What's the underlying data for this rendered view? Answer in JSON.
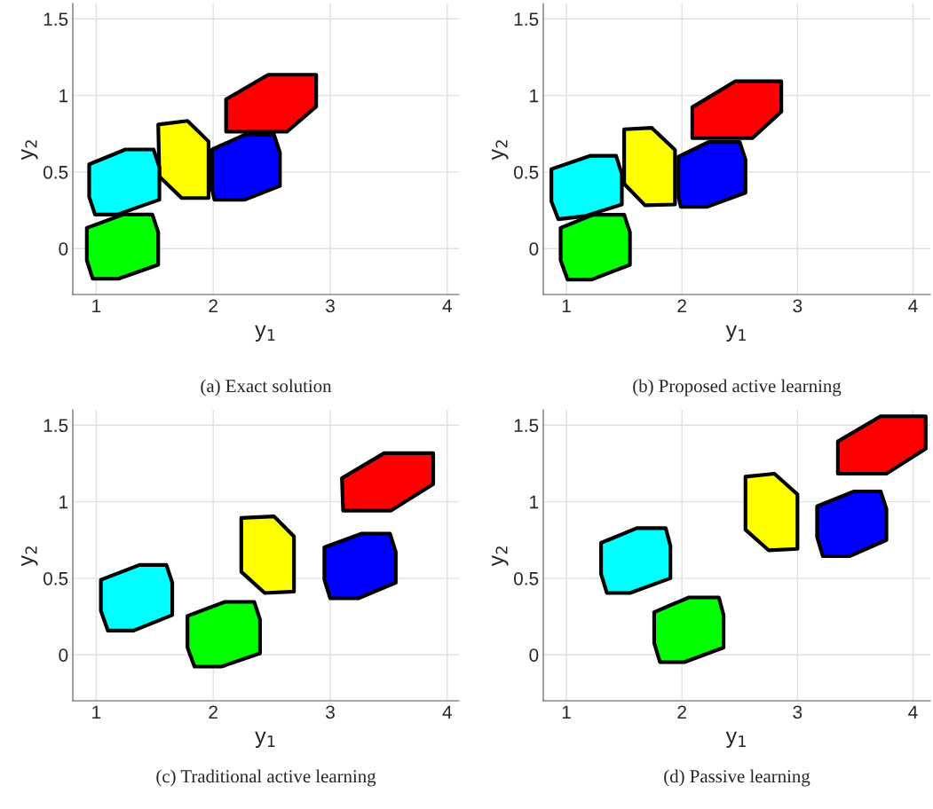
{
  "chart_data": [
    {
      "type": "area",
      "title": "(a) Exact solution",
      "xlabel": "y$_{1}$",
      "ylabel": "y$_{2}$",
      "xlim": [
        0.8,
        4.1
      ],
      "ylim": [
        -0.3,
        1.6
      ],
      "xticks": [
        1,
        2,
        3,
        4
      ],
      "yticks": [
        0,
        0.5,
        1,
        1.5
      ],
      "grid": true,
      "series": [
        {
          "color": "#ff0000",
          "x": [
            2.11,
            2.47,
            2.88,
            2.88,
            2.63,
            2.11,
            2.11
          ],
          "values": [
            0.975,
            1.135,
            1.135,
            0.927,
            0.763,
            0.763,
            0.975
          ]
        },
        {
          "color": "#ffff00",
          "x": [
            1.53,
            1.78,
            1.96,
            1.96,
            1.73,
            1.54,
            1.53
          ],
          "values": [
            0.81,
            0.834,
            0.7,
            0.33,
            0.33,
            0.47,
            0.81
          ]
        },
        {
          "color": "#0000ff",
          "x": [
            1.99,
            2.27,
            2.52,
            2.57,
            2.57,
            2.27,
            2.01,
            1.99,
            1.99
          ],
          "values": [
            0.647,
            0.743,
            0.743,
            0.627,
            0.409,
            0.319,
            0.319,
            0.386,
            0.647
          ]
        },
        {
          "color": "#00ffff",
          "x": [
            0.94,
            1.25,
            1.49,
            1.54,
            1.54,
            1.18,
            0.99,
            0.94,
            0.94
          ],
          "values": [
            0.55,
            0.647,
            0.647,
            0.531,
            0.319,
            0.222,
            0.222,
            0.338,
            0.55
          ]
        },
        {
          "color": "#00ff00",
          "x": [
            0.92,
            1.23,
            1.48,
            1.53,
            1.53,
            1.19,
            0.97,
            0.92,
            0.92
          ],
          "values": [
            0.135,
            0.222,
            0.222,
            0.106,
            -0.106,
            -0.197,
            -0.197,
            -0.077,
            0.135
          ]
        }
      ]
    },
    {
      "type": "area",
      "title": "(b) Proposed active learning",
      "xlabel": "y$_{1}$",
      "ylabel": "y$_{2}$",
      "xlim": [
        0.8,
        4.15
      ],
      "ylim": [
        -0.3,
        1.6
      ],
      "xticks": [
        1,
        2,
        3,
        4
      ],
      "yticks": [
        0,
        0.5,
        1,
        1.5
      ],
      "grid": true,
      "series": [
        {
          "color": "#ff0000",
          "x": [
            2.09,
            2.46,
            2.86,
            2.86,
            2.61,
            2.09,
            2.09
          ],
          "values": [
            0.923,
            1.092,
            1.092,
            0.894,
            0.721,
            0.721,
            0.923
          ]
        },
        {
          "color": "#ffff00",
          "x": [
            1.5,
            1.74,
            1.94,
            1.94,
            1.68,
            1.5,
            1.5
          ],
          "values": [
            0.779,
            0.788,
            0.644,
            0.288,
            0.283,
            0.423,
            0.779
          ]
        },
        {
          "color": "#0000ff",
          "x": [
            1.97,
            2.23,
            2.5,
            2.55,
            2.55,
            2.22,
            1.99,
            1.97,
            1.97
          ],
          "values": [
            0.6,
            0.696,
            0.696,
            0.581,
            0.365,
            0.273,
            0.273,
            0.337,
            0.6
          ]
        },
        {
          "color": "#00ffff",
          "x": [
            0.87,
            1.21,
            1.43,
            1.48,
            1.48,
            1.16,
            0.93,
            0.87,
            0.87
          ],
          "values": [
            0.519,
            0.606,
            0.606,
            0.485,
            0.288,
            0.212,
            0.192,
            0.308,
            0.519
          ]
        },
        {
          "color": "#00ff00",
          "x": [
            0.95,
            1.23,
            1.5,
            1.55,
            1.55,
            1.22,
            1.01,
            0.95,
            0.95
          ],
          "values": [
            0.135,
            0.221,
            0.221,
            0.106,
            -0.106,
            -0.202,
            -0.202,
            -0.077,
            0.135
          ]
        }
      ]
    },
    {
      "type": "area",
      "title": "(c) Traditional active learning",
      "xlabel": "y$_{1}$",
      "ylabel": "y$_{2}$",
      "xlim": [
        0.8,
        4.1
      ],
      "ylim": [
        -0.3,
        1.6
      ],
      "xticks": [
        1,
        2,
        3,
        4
      ],
      "yticks": [
        0,
        0.5,
        1,
        1.5
      ],
      "grid": true,
      "series": [
        {
          "color": "#ff0000",
          "x": [
            3.1,
            3.46,
            3.88,
            3.88,
            3.52,
            3.11,
            3.1
          ],
          "values": [
            1.154,
            1.317,
            1.317,
            1.115,
            0.942,
            0.942,
            1.154
          ]
        },
        {
          "color": "#ffff00",
          "x": [
            2.24,
            2.52,
            2.69,
            2.69,
            2.44,
            2.24,
            2.24
          ],
          "values": [
            0.894,
            0.904,
            0.773,
            0.413,
            0.404,
            0.542,
            0.894
          ]
        },
        {
          "color": "#0000ff",
          "x": [
            2.95,
            3.27,
            3.51,
            3.56,
            3.56,
            3.24,
            3.0,
            2.95,
            2.95
          ],
          "values": [
            0.702,
            0.792,
            0.792,
            0.673,
            0.471,
            0.369,
            0.369,
            0.49,
            0.702
          ]
        },
        {
          "color": "#00ffff",
          "x": [
            1.04,
            1.37,
            1.6,
            1.65,
            1.65,
            1.32,
            1.1,
            1.04,
            1.04
          ],
          "values": [
            0.49,
            0.587,
            0.587,
            0.471,
            0.26,
            0.158,
            0.158,
            0.288,
            0.49
          ]
        },
        {
          "color": "#00ff00",
          "x": [
            1.78,
            2.1,
            2.35,
            2.4,
            2.4,
            2.07,
            1.84,
            1.78,
            1.78
          ],
          "values": [
            0.254,
            0.346,
            0.346,
            0.231,
            0.01,
            -0.077,
            -0.077,
            0.048,
            0.254
          ]
        }
      ]
    },
    {
      "type": "area",
      "title": "(d) Passive learning",
      "xlabel": "y$_{1}$",
      "ylabel": "y$_{2}$",
      "xlim": [
        0.8,
        4.15
      ],
      "ylim": [
        -0.3,
        1.6
      ],
      "xticks": [
        1,
        2,
        3,
        4
      ],
      "yticks": [
        0,
        0.5,
        1,
        1.5
      ],
      "grid": true,
      "series": [
        {
          "color": "#ff0000",
          "x": [
            3.35,
            3.72,
            4.11,
            4.11,
            3.77,
            3.35,
            3.35
          ],
          "values": [
            1.394,
            1.558,
            1.558,
            1.346,
            1.183,
            1.183,
            1.394
          ]
        },
        {
          "color": "#ffff00",
          "x": [
            2.55,
            2.8,
            3.0,
            3.0,
            2.75,
            2.55,
            2.55
          ],
          "values": [
            1.163,
            1.183,
            1.048,
            0.692,
            0.683,
            0.817,
            1.163
          ]
        },
        {
          "color": "#0000ff",
          "x": [
            3.17,
            3.49,
            3.72,
            3.77,
            3.77,
            3.45,
            3.22,
            3.17,
            3.17
          ],
          "values": [
            0.971,
            1.067,
            1.067,
            0.952,
            0.75,
            0.644,
            0.644,
            0.769,
            0.971
          ]
        },
        {
          "color": "#00ffff",
          "x": [
            1.3,
            1.61,
            1.86,
            1.9,
            1.9,
            1.55,
            1.35,
            1.3,
            1.3
          ],
          "values": [
            0.731,
            0.827,
            0.827,
            0.712,
            0.5,
            0.404,
            0.404,
            0.529,
            0.731
          ]
        },
        {
          "color": "#00ff00",
          "x": [
            1.76,
            2.06,
            2.32,
            2.36,
            2.36,
            2.02,
            1.81,
            1.76,
            1.76
          ],
          "values": [
            0.279,
            0.375,
            0.375,
            0.26,
            0.048,
            -0.048,
            -0.048,
            0.077,
            0.279
          ]
        }
      ]
    }
  ]
}
